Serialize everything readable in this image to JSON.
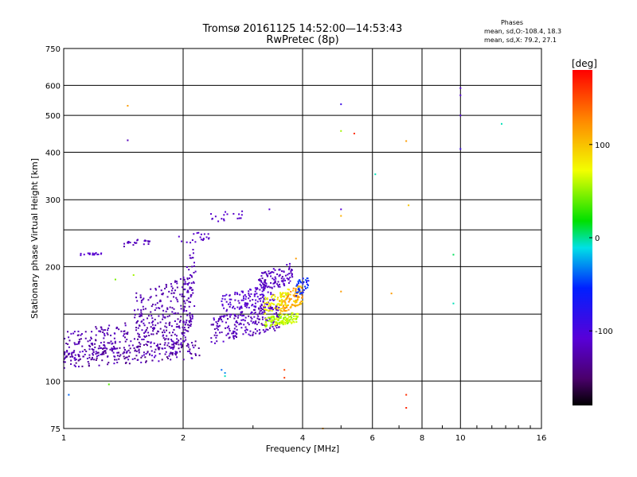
{
  "header": {
    "title_line1": "Tromsø 20161125 14:52:00—14:53:43",
    "title_line2": "RwPretec (8p)"
  },
  "stats": {
    "heading": "Phases",
    "line1": "mean, sd,O:-108.4, 18.3",
    "line2": "mean, sd,X:  79.2, 27.1"
  },
  "colorbar": {
    "label": "[deg]",
    "range": [
      -180,
      180
    ],
    "ticks": [
      "100",
      "0",
      "-100"
    ],
    "tick_values": [
      100,
      0,
      -100
    ]
  },
  "chart_data": {
    "type": "scatter",
    "xlabel": "Frequency [MHz]",
    "ylabel": "Stationary phase Virtual Height [km]",
    "x_scale": "log2",
    "y_scale": "log",
    "xlim": [
      1,
      16
    ],
    "ylim": [
      75,
      750
    ],
    "x_ticks": [
      "1",
      "2",
      "4",
      "6",
      "8",
      "10",
      "16"
    ],
    "x_tick_values": [
      1,
      2,
      4,
      6,
      8,
      10,
      16
    ],
    "y_ticks": [
      "750",
      "600",
      "500",
      "400",
      "300",
      "200",
      "100",
      "75"
    ],
    "y_tick_values": [
      750,
      600,
      500,
      400,
      300,
      200,
      100,
      75
    ],
    "grid": true,
    "clusters": [
      {
        "x0": 1.0,
        "x1": 2.1,
        "y0": 112,
        "y1": 150,
        "p0": -115,
        "p1": -135,
        "n": 300
      },
      {
        "x0": 1.0,
        "x1": 2.2,
        "y0": 108,
        "y1": 128,
        "p0": -110,
        "p1": -145,
        "n": 200
      },
      {
        "x0": 1.5,
        "x1": 2.1,
        "y0": 138,
        "y1": 190,
        "p0": -118,
        "p1": -130,
        "n": 140
      },
      {
        "x0": 2.0,
        "x1": 2.15,
        "y0": 120,
        "y1": 240,
        "p0": -115,
        "p1": -125,
        "n": 60
      },
      {
        "x0": 2.35,
        "x1": 3.5,
        "y0": 125,
        "y1": 160,
        "p0": -110,
        "p1": -130,
        "n": 220
      },
      {
        "x0": 2.5,
        "x1": 3.4,
        "y0": 150,
        "y1": 180,
        "p0": -105,
        "p1": -120,
        "n": 120
      },
      {
        "x0": 3.1,
        "x1": 3.8,
        "y0": 170,
        "y1": 205,
        "p0": -110,
        "p1": -125,
        "n": 110
      },
      {
        "x0": 3.2,
        "x1": 3.9,
        "y0": 138,
        "y1": 152,
        "p0": 30,
        "p1": 60,
        "n": 120
      },
      {
        "x0": 3.5,
        "x1": 4.0,
        "y0": 150,
        "y1": 180,
        "p0": 80,
        "p1": 125,
        "n": 120
      },
      {
        "x0": 3.2,
        "x1": 3.7,
        "y0": 150,
        "y1": 175,
        "p0": 50,
        "p1": 85,
        "n": 60
      },
      {
        "x0": 3.85,
        "x1": 4.15,
        "y0": 165,
        "y1": 192,
        "p0": -95,
        "p1": -60,
        "n": 40
      },
      {
        "x0": 1.1,
        "x1": 1.25,
        "y0": 214,
        "y1": 218,
        "p0": -110,
        "p1": -115,
        "n": 18
      },
      {
        "x0": 1.4,
        "x1": 1.65,
        "y0": 225,
        "y1": 238,
        "p0": -115,
        "p1": -125,
        "n": 22
      },
      {
        "x0": 1.95,
        "x1": 2.35,
        "y0": 228,
        "y1": 250,
        "p0": -110,
        "p1": -120,
        "n": 20
      },
      {
        "x0": 2.35,
        "x1": 2.85,
        "y0": 260,
        "y1": 285,
        "p0": -110,
        "p1": -118,
        "n": 18
      }
    ],
    "isolated_points": [
      {
        "x": 1.45,
        "y": 530,
        "phase": 110
      },
      {
        "x": 1.45,
        "y": 430,
        "phase": -120
      },
      {
        "x": 1.3,
        "y": 98,
        "phase": 20
      },
      {
        "x": 1.03,
        "y": 92,
        "phase": -60
      },
      {
        "x": 5.0,
        "y": 535,
        "phase": -100
      },
      {
        "x": 5.0,
        "y": 455,
        "phase": 40
      },
      {
        "x": 5.4,
        "y": 448,
        "phase": 160
      },
      {
        "x": 6.1,
        "y": 350,
        "phase": -20
      },
      {
        "x": 7.3,
        "y": 428,
        "phase": 110
      },
      {
        "x": 7.4,
        "y": 290,
        "phase": 90
      },
      {
        "x": 5.0,
        "y": 283,
        "phase": -110
      },
      {
        "x": 5.0,
        "y": 272,
        "phase": 100
      },
      {
        "x": 5.0,
        "y": 172,
        "phase": 110
      },
      {
        "x": 6.7,
        "y": 170,
        "phase": 110
      },
      {
        "x": 9.6,
        "y": 215,
        "phase": -10
      },
      {
        "x": 9.6,
        "y": 160,
        "phase": -20
      },
      {
        "x": 10.0,
        "y": 590,
        "phase": -110
      },
      {
        "x": 10.0,
        "y": 565,
        "phase": -110
      },
      {
        "x": 10.0,
        "y": 500,
        "phase": -110
      },
      {
        "x": 10.0,
        "y": 408,
        "phase": -100
      },
      {
        "x": 12.7,
        "y": 475,
        "phase": -20
      },
      {
        "x": 3.6,
        "y": 107,
        "phase": 150
      },
      {
        "x": 3.6,
        "y": 102,
        "phase": 155
      },
      {
        "x": 7.3,
        "y": 92,
        "phase": 160
      },
      {
        "x": 7.3,
        "y": 85,
        "phase": 165
      },
      {
        "x": 4.5,
        "y": 75,
        "phase": 110
      },
      {
        "x": 1.35,
        "y": 185,
        "phase": 30
      },
      {
        "x": 1.5,
        "y": 190,
        "phase": 40
      },
      {
        "x": 2.5,
        "y": 107,
        "phase": -60
      },
      {
        "x": 2.55,
        "y": 105,
        "phase": -50
      },
      {
        "x": 2.55,
        "y": 103,
        "phase": -20
      },
      {
        "x": 3.3,
        "y": 283,
        "phase": -110
      },
      {
        "x": 3.85,
        "y": 210,
        "phase": 110
      },
      {
        "x": 2.1,
        "y": 115,
        "phase": -110
      }
    ]
  }
}
